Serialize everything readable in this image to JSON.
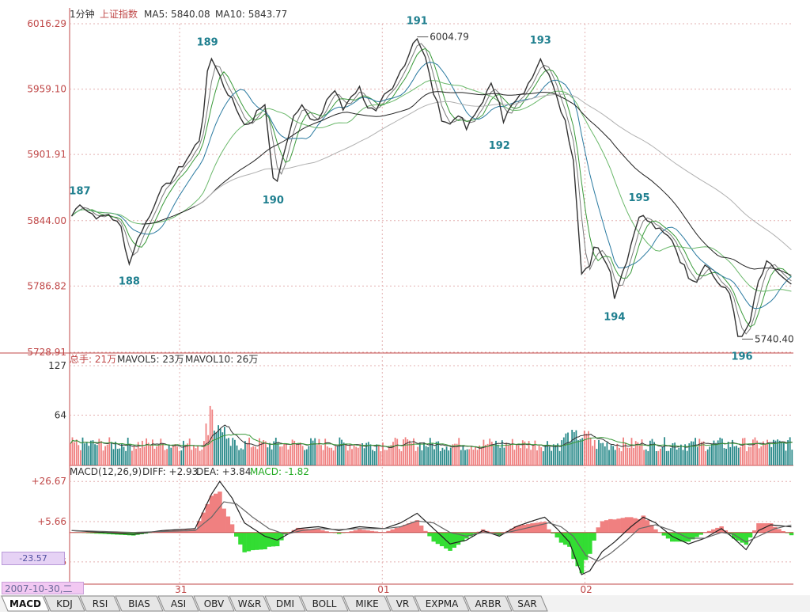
{
  "header": {
    "period": "1分钟",
    "index_name": "上证指数",
    "ma5_label": "MA5: 5840.08",
    "ma10_label": "MA10: 5843.77"
  },
  "volume_header": {
    "total_label": "总手: 21万",
    "mavol5_label": "MAVOL5: 23万",
    "mavol10_label": "MAVOL10: 26万"
  },
  "macd_header": {
    "name": "MACD(12,26,9)",
    "diff_label": "DIFF: +2.93",
    "dea_label": "DEA: +3.84",
    "macd_label": "MACD: -1.82"
  },
  "cursor_value": "-23.57",
  "date_label": "2007-10-30,二",
  "tabs": [
    "MACD",
    "KDJ",
    "RSI",
    "BIAS",
    "ASI",
    "OBV",
    "W&R",
    "DMI",
    "BOLL",
    "MIKE",
    "VR",
    "EXPMA",
    "ARBR",
    "SAR"
  ],
  "colors": {
    "up": "#f08080",
    "down": "#2a8a8a",
    "macd_neg": "#33dd33",
    "axis_label": "#c04848",
    "grid": "#e3b0b0",
    "price_line": "#333333",
    "wave_label": "#1f7f8f"
  },
  "chart_data": [
    {
      "type": "line",
      "panel": "price",
      "yticks": [
        "6016.29",
        "5959.10",
        "5901.91",
        "5844.00",
        "5786.82",
        "5728.91"
      ],
      "ylim": [
        5728.91,
        6016.29
      ],
      "xticks": [
        "31",
        "01",
        "02"
      ],
      "price_points": [
        [
          0,
          5848
        ],
        [
          2,
          5860
        ],
        [
          4,
          5852
        ],
        [
          7,
          5846
        ],
        [
          9,
          5850
        ],
        [
          12,
          5838
        ],
        [
          13,
          5822
        ],
        [
          14,
          5806
        ],
        [
          15,
          5818
        ],
        [
          17,
          5836
        ],
        [
          19,
          5848
        ],
        [
          21,
          5868
        ],
        [
          23,
          5874
        ],
        [
          25,
          5884
        ],
        [
          27,
          5893
        ],
        [
          29,
          5903
        ],
        [
          31,
          5915
        ],
        [
          32,
          5938
        ],
        [
          33,
          5972
        ],
        [
          34,
          5986
        ],
        [
          35,
          5980
        ],
        [
          37,
          5962
        ],
        [
          39,
          5950
        ],
        [
          41,
          5935
        ],
        [
          43,
          5926
        ],
        [
          45,
          5938
        ],
        [
          47,
          5947
        ],
        [
          48,
          5912
        ],
        [
          49,
          5882
        ],
        [
          50,
          5877
        ],
        [
          52,
          5910
        ],
        [
          54,
          5936
        ],
        [
          56,
          5948
        ],
        [
          58,
          5932
        ],
        [
          60,
          5930
        ],
        [
          62,
          5950
        ],
        [
          64,
          5958
        ],
        [
          66,
          5941
        ],
        [
          68,
          5954
        ],
        [
          70,
          5960
        ],
        [
          72,
          5944
        ],
        [
          74,
          5938
        ],
        [
          76,
          5952
        ],
        [
          78,
          5958
        ],
        [
          80,
          5975
        ],
        [
          82,
          5990
        ],
        [
          83,
          6000
        ],
        [
          84,
          6004.79
        ],
        [
          86,
          5986
        ],
        [
          88,
          5956
        ],
        [
          90,
          5934
        ],
        [
          92,
          5928
        ],
        [
          94,
          5938
        ],
        [
          96,
          5924
        ],
        [
          98,
          5936
        ],
        [
          100,
          5950
        ],
        [
          102,
          5962
        ],
        [
          104,
          5950
        ],
        [
          105,
          5932
        ],
        [
          107,
          5944
        ],
        [
          109,
          5952
        ],
        [
          111,
          5962
        ],
        [
          113,
          5980
        ],
        [
          114,
          5988
        ],
        [
          116,
          5972
        ],
        [
          118,
          5950
        ],
        [
          120,
          5932
        ],
        [
          122,
          5898
        ],
        [
          123,
          5848
        ],
        [
          124,
          5800
        ],
        [
          126,
          5806
        ],
        [
          127,
          5822
        ],
        [
          129,
          5815
        ],
        [
          131,
          5802
        ],
        [
          132,
          5775
        ],
        [
          133,
          5790
        ],
        [
          135,
          5810
        ],
        [
          137,
          5836
        ],
        [
          138,
          5850
        ],
        [
          140,
          5844
        ],
        [
          142,
          5838
        ],
        [
          144,
          5832
        ],
        [
          146,
          5828
        ],
        [
          148,
          5810
        ],
        [
          150,
          5796
        ],
        [
          152,
          5792
        ],
        [
          154,
          5808
        ],
        [
          156,
          5796
        ],
        [
          158,
          5786
        ],
        [
          160,
          5780
        ],
        [
          161,
          5765
        ],
        [
          162,
          5745
        ],
        [
          163,
          5740.4
        ],
        [
          165,
          5756
        ],
        [
          167,
          5790
        ],
        [
          169,
          5806
        ],
        [
          171,
          5802
        ],
        [
          173,
          5793
        ],
        [
          175,
          5786
        ]
      ],
      "waves": [
        {
          "label": "187",
          "x": 2,
          "y": 5856
        },
        {
          "label": "188",
          "x": 14,
          "y": 5806
        },
        {
          "label": "189",
          "x": 33,
          "y": 5986
        },
        {
          "label": "190",
          "x": 49,
          "y": 5877
        },
        {
          "label": "191",
          "x": 84,
          "y": 6004.79
        },
        {
          "label": "192",
          "x": 104,
          "y": 5925
        },
        {
          "label": "193",
          "x": 114,
          "y": 5988
        },
        {
          "label": "194",
          "x": 132,
          "y": 5775
        },
        {
          "label": "195",
          "x": 138,
          "y": 5850
        },
        {
          "label": "196",
          "x": 163,
          "y": 5740.4
        }
      ],
      "annotations": [
        {
          "text": "6004.79",
          "x": 84,
          "y": 6004.79
        },
        {
          "text": "5740.40",
          "x": 163,
          "y": 5740.4
        }
      ]
    },
    {
      "type": "bar",
      "panel": "volume",
      "yticks": [
        "127",
        "64"
      ],
      "ylim": [
        0,
        127
      ]
    },
    {
      "type": "bar",
      "panel": "macd",
      "yticks": [
        "+26.67",
        "+5.66",
        "-15.36"
      ],
      "ylim": [
        -27,
        28
      ],
      "diff": [
        [
          0,
          1
        ],
        [
          8,
          0
        ],
        [
          15,
          -1
        ],
        [
          22,
          1
        ],
        [
          30,
          2
        ],
        [
          34,
          20
        ],
        [
          36,
          26.67
        ],
        [
          39,
          18
        ],
        [
          42,
          5
        ],
        [
          47,
          -2
        ],
        [
          50,
          -4
        ],
        [
          55,
          2
        ],
        [
          60,
          3
        ],
        [
          65,
          1
        ],
        [
          70,
          3
        ],
        [
          76,
          2
        ],
        [
          80,
          5
        ],
        [
          84,
          10
        ],
        [
          88,
          2
        ],
        [
          92,
          -6
        ],
        [
          96,
          -4
        ],
        [
          100,
          1
        ],
        [
          104,
          -2
        ],
        [
          108,
          3
        ],
        [
          112,
          6
        ],
        [
          115,
          8
        ],
        [
          118,
          2
        ],
        [
          121,
          -5
        ],
        [
          124,
          -22
        ],
        [
          126,
          -20
        ],
        [
          129,
          -10
        ],
        [
          132,
          -5
        ],
        [
          136,
          3
        ],
        [
          139,
          8
        ],
        [
          142,
          5
        ],
        [
          146,
          -2
        ],
        [
          150,
          -6
        ],
        [
          154,
          -3
        ],
        [
          158,
          2
        ],
        [
          161,
          -3
        ],
        [
          164,
          -9
        ],
        [
          167,
          1
        ],
        [
          170,
          4
        ],
        [
          175,
          2.93
        ]
      ],
      "dea": [
        [
          0,
          1
        ],
        [
          8,
          0.5
        ],
        [
          15,
          0
        ],
        [
          22,
          0.5
        ],
        [
          30,
          1
        ],
        [
          34,
          8
        ],
        [
          37,
          16
        ],
        [
          40,
          15
        ],
        [
          44,
          8
        ],
        [
          48,
          2
        ],
        [
          52,
          -1
        ],
        [
          56,
          1
        ],
        [
          60,
          2
        ],
        [
          65,
          1.5
        ],
        [
          70,
          2
        ],
        [
          76,
          2
        ],
        [
          80,
          3
        ],
        [
          84,
          6
        ],
        [
          88,
          5
        ],
        [
          92,
          0
        ],
        [
          96,
          -2
        ],
        [
          100,
          0
        ],
        [
          104,
          -1
        ],
        [
          108,
          1
        ],
        [
          112,
          3
        ],
        [
          116,
          5
        ],
        [
          119,
          3
        ],
        [
          122,
          -2
        ],
        [
          125,
          -12
        ],
        [
          128,
          -15
        ],
        [
          131,
          -11
        ],
        [
          135,
          -4
        ],
        [
          138,
          2
        ],
        [
          142,
          4
        ],
        [
          146,
          1
        ],
        [
          150,
          -3
        ],
        [
          154,
          -3
        ],
        [
          158,
          0
        ],
        [
          161,
          -1
        ],
        [
          164,
          -5
        ],
        [
          167,
          -2
        ],
        [
          171,
          2
        ],
        [
          175,
          3.84
        ]
      ]
    }
  ]
}
